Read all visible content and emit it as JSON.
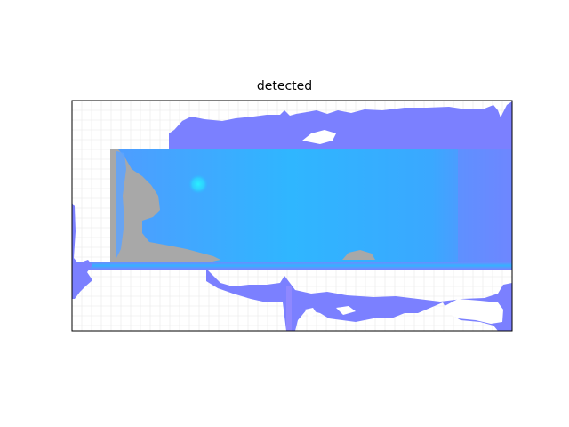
{
  "figure": {
    "title": "detected"
  },
  "colors": {
    "background": "#ffffff",
    "grid": "#e8e8e8",
    "frame": "#000000",
    "detected_primary": "#29b8ff",
    "detected_secondary": "#7b80ff",
    "undetected_gray": "#a8a8a8",
    "highlight_spot": "#22e4ff"
  }
}
